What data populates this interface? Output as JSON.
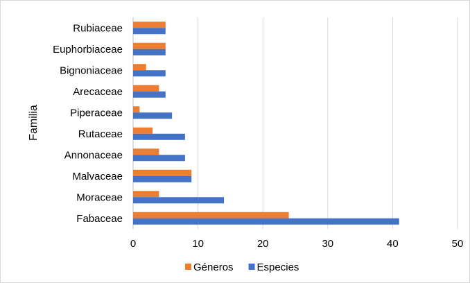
{
  "chart_data": {
    "type": "bar",
    "orientation": "horizontal",
    "ylabel": "Familia",
    "xlabel": "",
    "title": "",
    "xlim": [
      0,
      50
    ],
    "x_ticks": [
      0,
      10,
      20,
      30,
      40,
      50
    ],
    "grid": "vertical",
    "legend_position": "bottom",
    "categories": [
      "Rubiaceae",
      "Euphorbiaceae",
      "Bignoniaceae",
      "Arecaceae",
      "Piperaceae",
      "Rutaceae",
      "Annonaceae",
      "Malvaceae",
      "Moraceae",
      "Fabaceae"
    ],
    "series": [
      {
        "name": "Géneros",
        "color": "#ED7D31",
        "values": [
          5,
          5,
          2,
          4,
          1,
          3,
          4,
          9,
          4,
          24
        ]
      },
      {
        "name": "Especies",
        "color": "#4472C4",
        "values": [
          5,
          5,
          5,
          5,
          6,
          8,
          8,
          9,
          14,
          41
        ]
      }
    ]
  }
}
